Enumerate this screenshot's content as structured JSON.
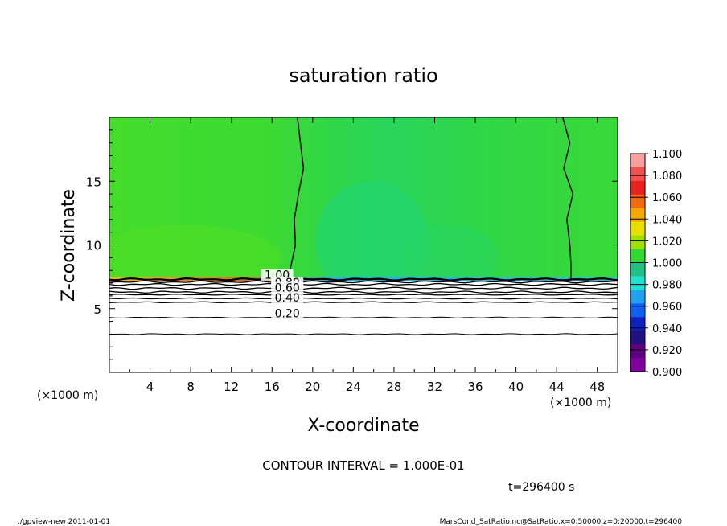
{
  "chart_data": {
    "type": "heatmap",
    "title": "saturation ratio",
    "xlabel": "X-coordinate",
    "ylabel": "Z-coordinate",
    "x_unit": "(×1000 m)",
    "y_unit": "(×1000 m)",
    "xlim": [
      0,
      50
    ],
    "ylim": [
      0,
      20
    ],
    "x_ticks": [
      4,
      8,
      12,
      16,
      20,
      24,
      28,
      32,
      36,
      40,
      44,
      48
    ],
    "y_ticks": [
      5,
      10,
      15
    ],
    "contour_interval_text": "CONTOUR INTERVAL = 1.000E-01",
    "time_text": "t=296400 s",
    "colorbar": {
      "levels": [
        "1.100",
        "1.080",
        "1.060",
        "1.040",
        "1.020",
        "1.000",
        "0.980",
        "0.960",
        "0.940",
        "0.920",
        "0.900"
      ],
      "colors": [
        "#f8a0a0",
        "#f05050",
        "#e82020",
        "#f06a10",
        "#f5a800",
        "#e8e000",
        "#a0e000",
        "#30d830",
        "#20c080",
        "#20e0d0",
        "#20a0f0",
        "#1060f0",
        "#1020c0",
        "#201080",
        "#600080",
        "#8000a0"
      ]
    },
    "field_colors": {
      "upper_mean": "#33d933",
      "upper_variant": "#44de2a",
      "mid_teal": "#25d56a",
      "surface_band": "#e07020",
      "below": "#ffffff"
    },
    "contours": {
      "boundary_z": 7.3,
      "labels": [
        {
          "text": "1.00",
          "x": 16.5,
          "z": 7.4
        },
        {
          "text": "0.80",
          "x": 17.5,
          "z": 6.8
        },
        {
          "text": "0.60",
          "x": 17.5,
          "z": 6.4
        },
        {
          "text": "0.40",
          "x": 17.5,
          "z": 5.6
        },
        {
          "text": "0.20",
          "x": 17.5,
          "z": 4.4
        }
      ],
      "horizontal_levels_z": [
        7.1,
        6.9,
        6.6,
        6.3,
        6.1,
        5.8,
        5.5,
        4.3,
        3.0
      ],
      "vertical_line_1": [
        [
          18.5,
          20
        ],
        [
          18.8,
          18
        ],
        [
          19.1,
          16
        ],
        [
          18.6,
          14
        ],
        [
          18.2,
          12
        ],
        [
          18.3,
          10
        ],
        [
          17.9,
          8.5
        ],
        [
          17.6,
          7.4
        ]
      ],
      "vertical_line_2": [
        [
          44.6,
          20
        ],
        [
          45.3,
          18
        ],
        [
          44.7,
          16
        ],
        [
          45.6,
          14
        ],
        [
          45.0,
          12
        ],
        [
          45.3,
          10
        ],
        [
          45.4,
          8.5
        ],
        [
          45.4,
          7.3
        ]
      ]
    },
    "footer_left": "./gpview-new   2011-01-01",
    "footer_right": "MarsCond_SatRatio.nc@SatRatio,x=0:50000,z=0:20000,t=296400"
  }
}
